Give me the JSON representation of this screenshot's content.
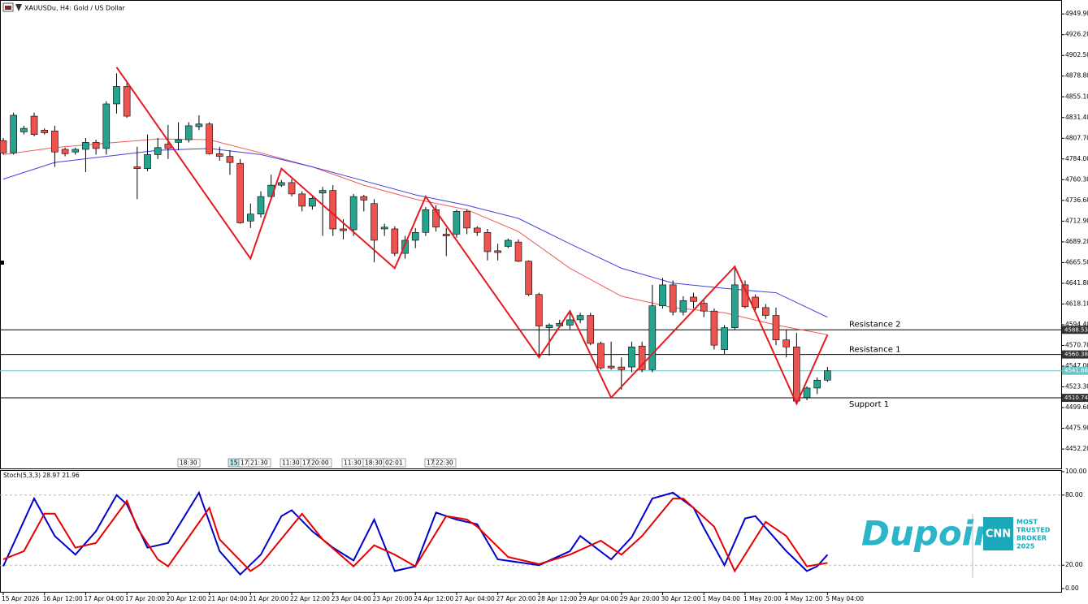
{
  "chart_data": {
    "type": "candlestick",
    "title": "XAUUSDu, H4: Gold / US Dollar",
    "ylim": [
      4430,
      4964
    ],
    "yticks": [
      {
        "value": 4949.9,
        "label": "4949.90"
      },
      {
        "value": 4926.2,
        "label": "4926.20"
      },
      {
        "value": 4902.5,
        "label": "4902.50"
      },
      {
        "value": 4878.8,
        "label": "4878.80"
      },
      {
        "value": 4855.1,
        "label": "4855.10"
      },
      {
        "value": 4831.4,
        "label": "4831.40"
      },
      {
        "value": 4807.7,
        "label": "4807.70"
      },
      {
        "value": 4784,
        "label": "4784.00"
      },
      {
        "value": 4760.3,
        "label": "4760.30"
      },
      {
        "value": 4736.6,
        "label": "4736.60"
      },
      {
        "value": 4712.9,
        "label": "4712.90"
      },
      {
        "value": 4689.2,
        "label": "4689.20"
      },
      {
        "value": 4665.5,
        "label": "4665.50"
      },
      {
        "value": 4641.8,
        "label": "4641.80"
      },
      {
        "value": 4618.1,
        "label": "4618.10"
      },
      {
        "value": 4594.4,
        "label": "4594.40"
      },
      {
        "value": 4570.7,
        "label": "4570.70"
      },
      {
        "value": 4547,
        "label": "4547.00"
      },
      {
        "value": 4523.3,
        "label": "4523.30"
      },
      {
        "value": 4499.6,
        "label": "4499.60"
      },
      {
        "value": 4475.9,
        "label": "4475.90"
      },
      {
        "value": 4452.2,
        "label": "4452.20"
      }
    ],
    "x_labels": [
      "15 Apr 2026",
      "16 Apr 12:00",
      "17 Apr 04:00",
      "17 Apr 20:00",
      "20 Apr 12:00",
      "21 Apr 04:00",
      "21 Apr 20:00",
      "22 Apr 12:00",
      "23 Apr 04:00",
      "23 Apr 20:00",
      "24 Apr 12:00",
      "27 Apr 04:00",
      "27 Apr 20:00",
      "28 Apr 12:00",
      "29 Apr 04:00",
      "29 Apr 20:00",
      "30 Apr 12:00",
      "1 May 04:00",
      "1 May 20:00",
      "4 May 12:00",
      "5 May 04:00"
    ],
    "up_color": "#26a38f",
    "down_color": "#ef5350",
    "candles": {
      "open": [
        4805,
        4791,
        4815,
        4833,
        4817,
        4816,
        4795,
        4792,
        4795,
        4803,
        4796,
        4847,
        4867,
        4775,
        4773,
        4789,
        4801,
        4803,
        4806,
        4821,
        4824,
        4790,
        4787,
        4779,
        4713,
        4721,
        4741,
        4754,
        4757,
        4744,
        4730,
        4745,
        4748,
        4704,
        4703,
        4741,
        4733,
        4704,
        4704,
        4676,
        4691,
        4700,
        4726,
        4698,
        4698,
        4724,
        4705,
        4700,
        4679,
        4684,
        4689,
        4667,
        4629,
        4591,
        4593,
        4594,
        4600,
        4605,
        4573,
        4547,
        4546,
        4546,
        4570,
        4543,
        4616,
        4640,
        4609,
        4626,
        4619,
        4610,
        4566,
        4591,
        4640,
        4626,
        4614,
        4605,
        4577,
        4569,
        4511,
        4522,
        4531
      ],
      "high": [
        4808,
        4837,
        4822,
        4837,
        4819,
        4822,
        4797,
        4797,
        4808,
        4806,
        4850,
        4882,
        4873,
        4798,
        4812,
        4808,
        4823,
        4826,
        4826,
        4834,
        4826,
        4798,
        4794,
        4784,
        4733,
        4747,
        4766,
        4760,
        4761,
        4747,
        4743,
        4752,
        4754,
        4715,
        4744,
        4743,
        4738,
        4710,
        4707,
        4696,
        4705,
        4729,
        4731,
        4705,
        4726,
        4726,
        4707,
        4704,
        4687,
        4693,
        4692,
        4668,
        4631,
        4596,
        4600,
        4608,
        4608,
        4608,
        4575,
        4575,
        4557,
        4575,
        4575,
        4640,
        4648,
        4645,
        4627,
        4631,
        4624,
        4613,
        4594,
        4659,
        4645,
        4629,
        4618,
        4614,
        4589,
        4585,
        4524,
        4534,
        4546
      ],
      "low": [
        4789,
        4789,
        4812,
        4810,
        4812,
        4775,
        4787,
        4789,
        4769,
        4789,
        4789,
        4836,
        4831,
        4738,
        4770,
        4784,
        4784,
        4794,
        4803,
        4817,
        4789,
        4782,
        4766,
        4710,
        4705,
        4717,
        4738,
        4752,
        4741,
        4724,
        4726,
        4696,
        4696,
        4692,
        4696,
        4724,
        4666,
        4696,
        4673,
        4670,
        4682,
        4696,
        4701,
        4673,
        4694,
        4698,
        4696,
        4668,
        4668,
        4682,
        4666,
        4627,
        4557,
        4559,
        4591,
        4589,
        4596,
        4571,
        4543,
        4543,
        4520,
        4540,
        4540,
        4540,
        4613,
        4605,
        4605,
        4613,
        4603,
        4566,
        4561,
        4589,
        4613,
        4611,
        4601,
        4571,
        4557,
        4504,
        4508,
        4515,
        4529
      ],
      "close": [
        4791,
        4834,
        4819,
        4812,
        4814,
        4792,
        4790,
        4795,
        4803,
        4796,
        4847,
        4867,
        4833,
        4773,
        4789,
        4797,
        4796,
        4806,
        4822,
        4824,
        4790,
        4787,
        4780,
        4711,
        4721,
        4741,
        4754,
        4757,
        4744,
        4730,
        4739,
        4748,
        4704,
        4702,
        4741,
        4737,
        4691,
        4706,
        4676,
        4691,
        4700,
        4726,
        4706,
        4696,
        4724,
        4705,
        4700,
        4678,
        4677,
        4691,
        4667,
        4629,
        4593,
        4594,
        4596,
        4600,
        4605,
        4573,
        4545,
        4545,
        4543,
        4569,
        4543,
        4616,
        4640,
        4609,
        4622,
        4621,
        4610,
        4571,
        4591,
        4640,
        4615,
        4614,
        4605,
        4577,
        4569,
        4507,
        4522,
        4531,
        4541.68
      ]
    },
    "moving_averages": [
      {
        "color": "#f05a5a",
        "x": [
          0,
          5,
          10,
          15,
          20,
          25,
          30,
          35,
          40,
          45,
          50,
          55,
          60,
          65,
          70,
          75,
          80
        ],
        "values": [
          4789,
          4797,
          4802,
          4807,
          4806,
          4791,
          4775,
          4754,
          4738,
          4726,
          4701,
          4659,
          4627,
          4614,
          4608,
          4594,
          4583
        ]
      },
      {
        "color": "#4040e0",
        "x": [
          0,
          5,
          10,
          15,
          20,
          25,
          30,
          35,
          40,
          45,
          50,
          55,
          60,
          65,
          70,
          75,
          80
        ],
        "values": [
          4761,
          4780,
          4787,
          4794,
          4796,
          4789,
          4775,
          4759,
          4743,
          4731,
          4716,
          4687,
          4659,
          4642,
          4636,
          4631,
          4603
        ]
      }
    ],
    "zigzag": {
      "color": "#e31b23",
      "x": [
        11,
        24,
        27,
        38,
        41,
        52,
        55,
        59,
        71,
        77,
        80
      ],
      "values": [
        4889,
        4670,
        4773,
        4659,
        4741,
        4557,
        4610,
        4511,
        4661,
        4504,
        4583
      ]
    },
    "levels": [
      {
        "name": "Resistance 2",
        "value": 4588.53
      },
      {
        "name": "Resistance 1",
        "value": 4560.38
      },
      {
        "name": "Support 1",
        "value": 4510.74
      }
    ],
    "current_price": 4541.68,
    "current_color": "#6cc4c4",
    "time_marks": [
      "18:30",
      "15:",
      "17:",
      "21:30",
      "11:30",
      "17:",
      "20:00",
      "11:30",
      "18:30",
      "02:01",
      "17:",
      "22:30"
    ],
    "stochastic": {
      "title": "Stoch(5,3,3) 28.97 21.96",
      "ylim": [
        0,
        100
      ],
      "yticks": [
        {
          "value": 100,
          "label": "100.00"
        },
        {
          "value": 80,
          "label": "80.00"
        },
        {
          "value": 20,
          "label": "20.00"
        },
        {
          "value": 0,
          "label": "0.00"
        }
      ],
      "k": {
        "color": "#0000c8",
        "x": [
          0,
          3,
          5,
          7,
          9,
          11,
          12,
          14,
          16,
          19,
          21,
          23,
          25,
          27,
          28,
          30,
          32,
          34,
          36,
          38,
          40,
          42,
          44,
          46,
          48,
          52,
          55,
          56,
          59,
          61,
          63,
          65,
          67,
          68,
          70,
          72,
          73,
          76,
          78,
          79,
          80
        ],
        "values": [
          19,
          77,
          45,
          29,
          49,
          80,
          72,
          35,
          39,
          82,
          32,
          12,
          29,
          62,
          67,
          49,
          35,
          24,
          59,
          15,
          19,
          65,
          59,
          55,
          25,
          20,
          32,
          45,
          25,
          44,
          77,
          82,
          69,
          52,
          20,
          60,
          62,
          32,
          15,
          19,
          28.97
        ]
      },
      "d": {
        "color": "#e60000",
        "x": [
          0,
          2,
          4,
          5,
          7,
          9,
          12,
          13,
          15,
          16,
          20,
          21,
          24,
          25,
          29,
          31,
          34,
          36,
          38,
          40,
          43,
          45,
          46,
          49,
          52,
          55,
          58,
          60,
          62,
          65,
          66,
          69,
          71,
          74,
          76,
          78,
          80
        ],
        "values": [
          25,
          32,
          64,
          64,
          35,
          39,
          75,
          52,
          25,
          19,
          69,
          42,
          15,
          21,
          64,
          42,
          19,
          37,
          29,
          19,
          62,
          59,
          53,
          27,
          21,
          29,
          41,
          29,
          45,
          77,
          77,
          53,
          15,
          57,
          45,
          19,
          21.96
        ]
      }
    },
    "logo": {
      "brand": "Dupoin",
      "badge": "CNN",
      "lines": [
        "MOST",
        "TRUSTED",
        "BROKER",
        "2025"
      ]
    }
  }
}
